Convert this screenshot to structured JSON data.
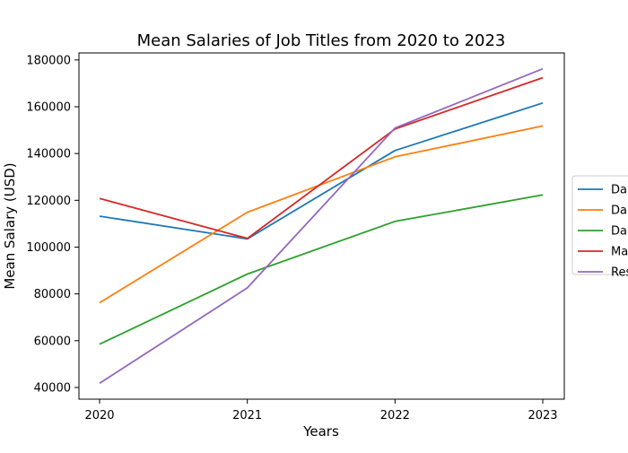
{
  "chart_data": {
    "type": "line",
    "title": "Mean Salaries of Job Titles from 2020 to 2023",
    "xlabel": "Years",
    "ylabel": "Mean Salary (USD)",
    "x": [
      "2020",
      "2021",
      "2022",
      "2023"
    ],
    "ylim": [
      35000,
      183000
    ],
    "yticks": [
      40000,
      60000,
      80000,
      100000,
      120000,
      140000,
      160000,
      180000
    ],
    "yticklabels": [
      "40000",
      "60000",
      "80000",
      "100000",
      "120000",
      "140000",
      "160000",
      "180000"
    ],
    "grid": false,
    "legend_position": "right",
    "series": [
      {
        "name": "Da",
        "color": "#1f77b4",
        "values": [
          113200,
          103500,
          141300,
          161600
        ]
      },
      {
        "name": "Da",
        "color": "#ff7f0e",
        "values": [
          76200,
          114900,
          138600,
          151800
        ]
      },
      {
        "name": "Da",
        "color": "#2ca02c",
        "values": [
          58500,
          88500,
          111000,
          122300
        ]
      },
      {
        "name": "Ma",
        "color": "#d62728",
        "values": [
          120800,
          103700,
          150500,
          172400
        ]
      },
      {
        "name": "Res",
        "color": "#9467bd",
        "values": [
          41800,
          82600,
          150900,
          176200
        ]
      }
    ]
  }
}
